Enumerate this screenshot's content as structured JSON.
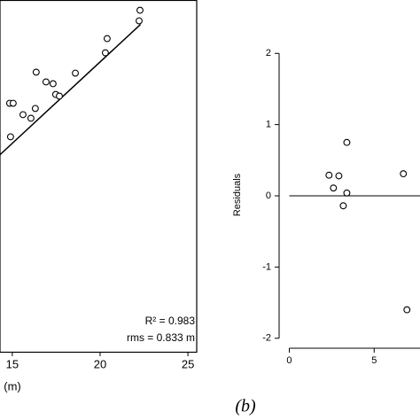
{
  "chart_data": [
    {
      "type": "scatter",
      "x": [
        22.27,
        22.22,
        20.4,
        20.3,
        18.59,
        16.36,
        16.92,
        17.32,
        17.47,
        17.68,
        16.31,
        15.61,
        16.06,
        14.85,
        15.05,
        14.9
      ],
      "y": [
        23.17,
        22.52,
        21.43,
        20.56,
        19.31,
        19.37,
        18.77,
        18.66,
        18.0,
        17.9,
        17.14,
        16.76,
        16.54,
        17.46,
        17.46,
        15.4
      ],
      "fit_line": {
        "x": [
          14.3,
          22.3
        ],
        "y": [
          14.3,
          22.3
        ]
      },
      "xlim": [
        14.3,
        25.5
      ],
      "ylim": [
        2.2,
        23.8
      ],
      "xticks": [
        15,
        20,
        25
      ],
      "xlabel": "(m)",
      "annotations": [
        "R² = 0.983",
        "rms = 0.833 m"
      ],
      "color": "#000000"
    },
    {
      "type": "scatter",
      "x": [
        2.34,
        2.92,
        2.6,
        3.39,
        3.39,
        3.18,
        6.72,
        6.93
      ],
      "y": [
        0.29,
        0.28,
        0.11,
        0.75,
        0.04,
        -0.14,
        0.31,
        -1.6
      ],
      "hline": 0,
      "xlim": [
        -0.6,
        7.7
      ],
      "ylim": [
        -2.14,
        2.19
      ],
      "xticks": [
        0,
        5
      ],
      "yticks": [
        -2,
        -1,
        0,
        1,
        2
      ],
      "ylabel": "Residuals",
      "caption": "(b)",
      "color": "#000000"
    }
  ]
}
